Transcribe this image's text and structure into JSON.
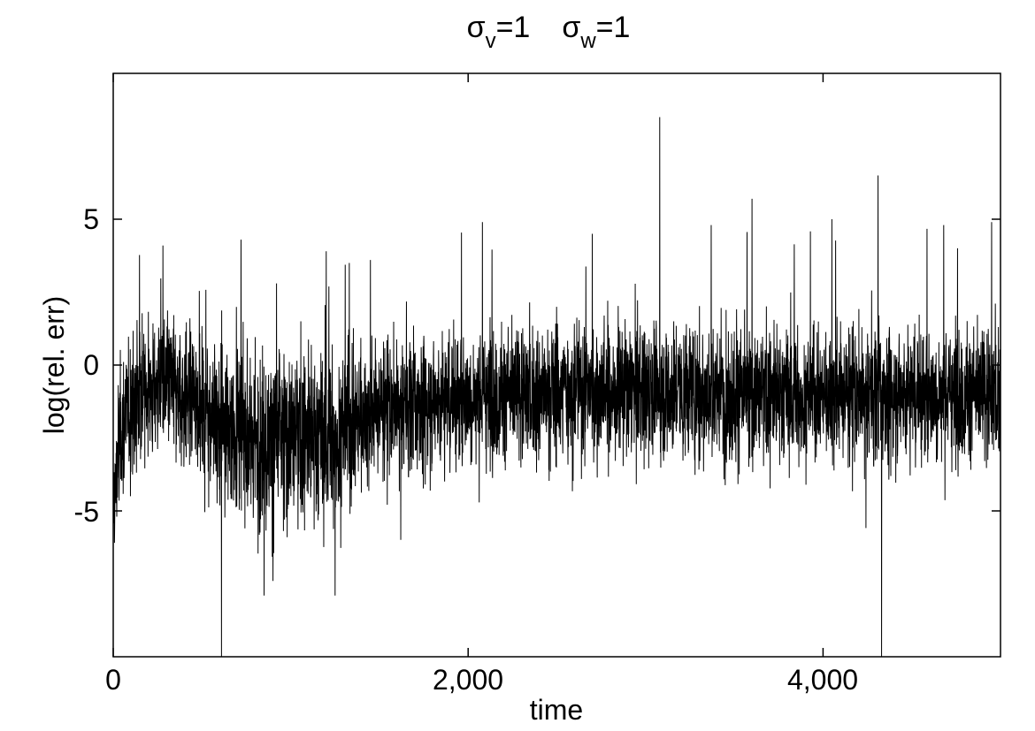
{
  "chart_data": {
    "type": "line",
    "title": {
      "part1_symbol": "σ",
      "part1_sub": "v",
      "part1_rest": "=1",
      "part2_symbol": "σ",
      "part2_sub": "w",
      "part2_rest": "=1"
    },
    "xlabel": "time",
    "ylabel": "log(rel. err)",
    "xlim": [
      0,
      5000
    ],
    "ylim": [
      -10,
      10
    ],
    "x_ticks": [
      0,
      2000,
      4000
    ],
    "x_tick_labels": [
      "0",
      "2,000",
      "4,000"
    ],
    "y_ticks": [
      -5,
      0,
      5
    ],
    "y_tick_labels": [
      "-5",
      "0",
      "5"
    ],
    "grid": false,
    "series": [
      {
        "color": "#000000",
        "n_points": 5000,
        "trend": [
          [
            0,
            -5.5
          ],
          [
            20,
            -3.5
          ],
          [
            60,
            -1.8
          ],
          [
            150,
            -1.0
          ],
          [
            300,
            -0.6
          ],
          [
            450,
            -1.2
          ],
          [
            600,
            -2.0
          ],
          [
            800,
            -2.6
          ],
          [
            1000,
            -2.4
          ],
          [
            1200,
            -2.5
          ],
          [
            1350,
            -2.0
          ],
          [
            1500,
            -1.5
          ],
          [
            2000,
            -1.1
          ],
          [
            2500,
            -0.9
          ],
          [
            3000,
            -0.9
          ],
          [
            3500,
            -1.0
          ],
          [
            4000,
            -1.0
          ],
          [
            4500,
            -1.0
          ],
          [
            5000,
            -1.0
          ]
        ],
        "spikes": [
          [
            280,
            4.1
          ],
          [
            720,
            4.3
          ],
          [
            920,
            2.8
          ],
          [
            1200,
            3.9
          ],
          [
            1330,
            3.5
          ],
          [
            2080,
            4.9
          ],
          [
            2700,
            4.5
          ],
          [
            3080,
            8.5
          ],
          [
            3370,
            4.8
          ],
          [
            3600,
            5.7
          ],
          [
            4050,
            5.0
          ],
          [
            4310,
            6.5
          ],
          [
            4680,
            4.8
          ],
          [
            4950,
            4.9
          ],
          [
            610,
            -10
          ],
          [
            850,
            -7.9
          ],
          [
            900,
            -7.4
          ],
          [
            1250,
            -7.9
          ],
          [
            4330,
            -10
          ]
        ]
      }
    ]
  }
}
